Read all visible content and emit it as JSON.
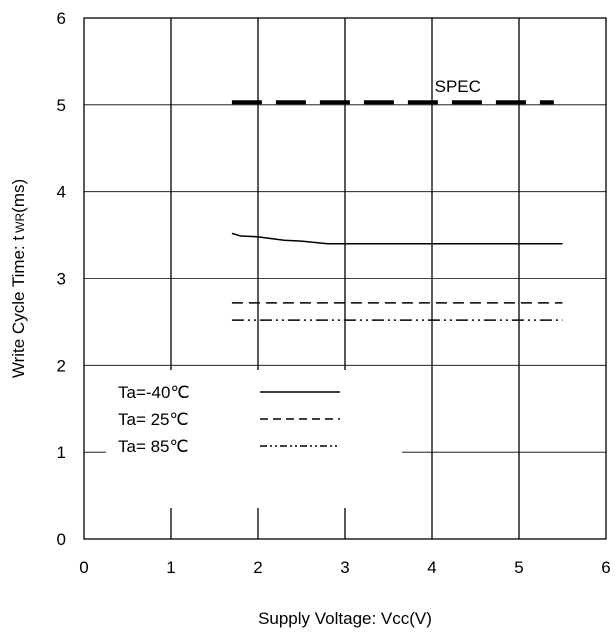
{
  "chart_data": {
    "type": "line",
    "title": "",
    "xlabel": "Supply Voltage: Vcc(V)",
    "ylabel": {
      "main": "Write Cycle Time: t",
      "subscript": "WR",
      "unit": "(ms)"
    },
    "xlim": [
      0,
      6
    ],
    "ylim": [
      0,
      6
    ],
    "xticks": [
      "0",
      "1",
      "2",
      "3",
      "4",
      "5",
      "6"
    ],
    "yticks": [
      "0",
      "1",
      "2",
      "3",
      "4",
      "5",
      "6"
    ],
    "grid": "vertical and horizontal, integer steps",
    "legend_placement": "bottom-left",
    "spec": {
      "label": "SPEC",
      "value": 5.03,
      "x_range": [
        1.7,
        5.4
      ]
    },
    "series": [
      {
        "name": "Ta=-40℃",
        "style": "solid",
        "x": [
          1.7,
          1.8,
          2.0,
          2.3,
          2.5,
          2.8,
          3.0,
          3.5,
          4.0,
          4.5,
          5.0,
          5.5
        ],
        "y": [
          3.52,
          3.49,
          3.48,
          3.44,
          3.43,
          3.4,
          3.4,
          3.4,
          3.4,
          3.4,
          3.4,
          3.4
        ]
      },
      {
        "name": "Ta= 25℃",
        "style": "dashed",
        "x": [
          1.7,
          5.5
        ],
        "y": [
          2.72,
          2.72
        ]
      },
      {
        "name": "Ta= 85℃",
        "style": "dashdot",
        "x": [
          1.7,
          5.5
        ],
        "y": [
          2.52,
          2.52
        ]
      }
    ]
  }
}
